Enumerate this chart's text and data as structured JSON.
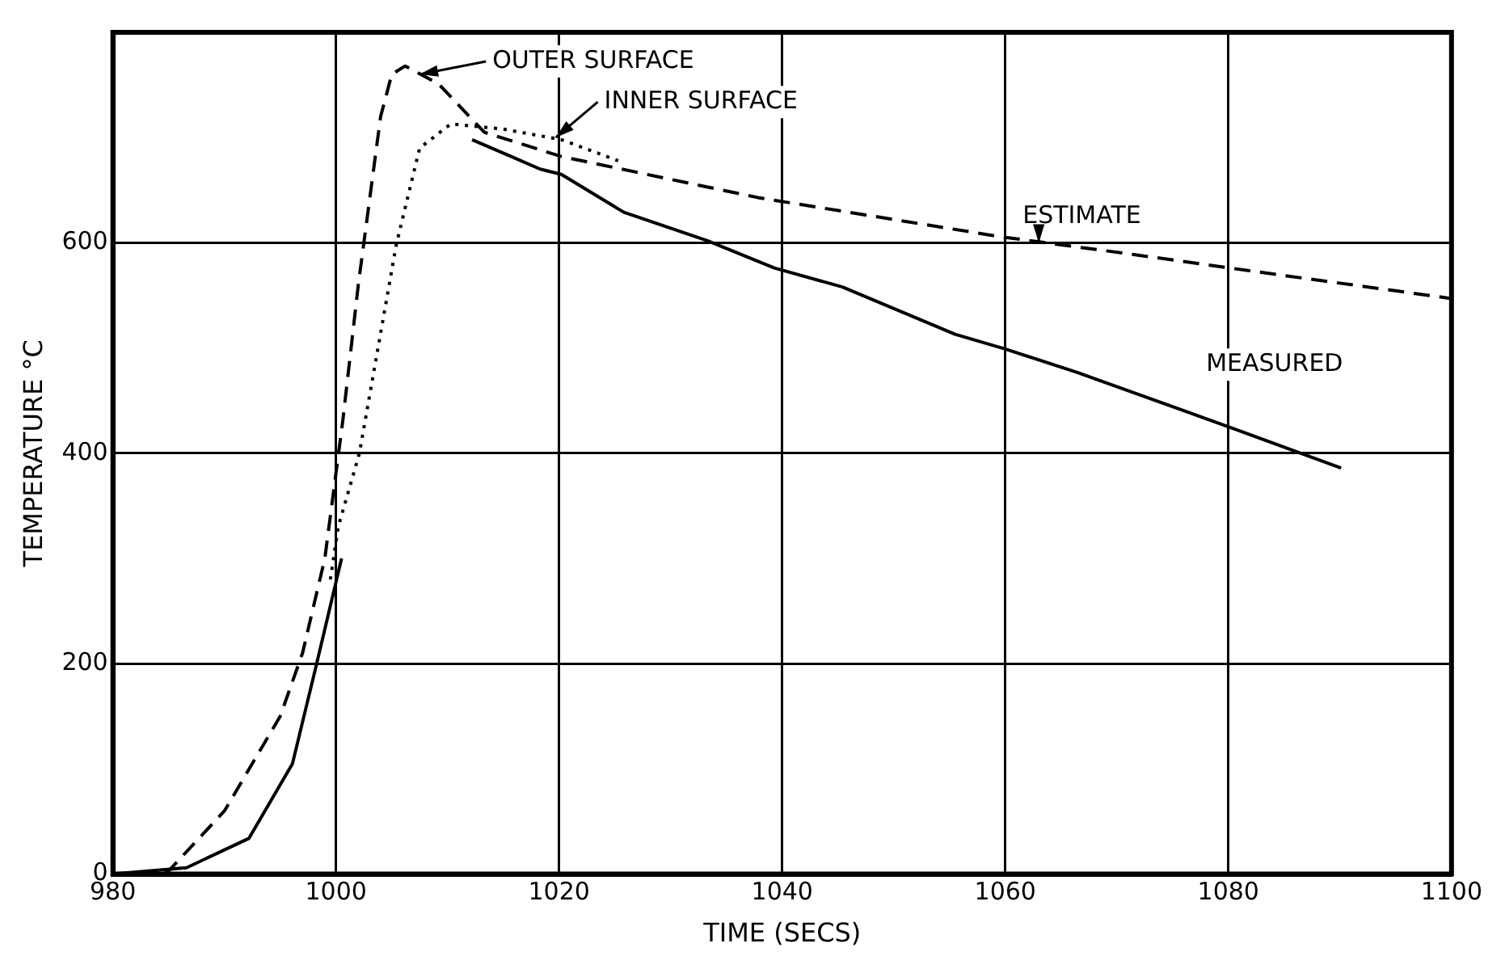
{
  "chart_data": {
    "type": "line",
    "xlabel": "TIME (SECS)",
    "ylabel": "TEMPERATURE °C",
    "xlim": [
      980,
      1100
    ],
    "xticks": [
      980,
      1000,
      1020,
      1040,
      1060,
      1080,
      1100
    ],
    "ylim": [
      0,
      800
    ],
    "yticks": [
      0,
      200,
      400,
      600
    ],
    "grid": true,
    "legend": false,
    "series": [
      {
        "color": "#000000",
        "line_style": "dashed",
        "x": [
          980,
          985,
          990,
          995,
          997,
          999,
          1000.6,
          1002,
          1003,
          1004,
          1005,
          1006.2,
          1009.2,
          1013.3,
          1020.2,
          1037.8,
          1059.4,
          1071.4,
          1081.5,
          1100
        ],
        "values": [
          0,
          3,
          60,
          150,
          210,
          300,
          430,
          560,
          640,
          720,
          760,
          768,
          751,
          705,
          682,
          643,
          606,
          589,
          574,
          547
        ]
      },
      {
        "color": "#000000",
        "line_style": "dotted",
        "x": [
          999.5,
          1000.2,
          1002.1,
          1005.4,
          1007.5,
          1010.3,
          1015,
          1020.2,
          1025.3
        ],
        "values": [
          280,
          330,
          400,
          598,
          690,
          713,
          708,
          698,
          678
        ]
      },
      {
        "color": "#000000",
        "line_style": "solid",
        "x": [
          980,
          986.6,
          992.2,
          996.1,
          998.2,
          999.9,
          1000.5,
          1006,
          1012.2,
          1015.7,
          1018.3,
          1020.2,
          1025.8,
          1033.3,
          1039.3,
          1045.4,
          1055.5,
          1060,
          1066.4,
          1079,
          1090.1
        ],
        "values": [
          0,
          6,
          34,
          105,
          197,
          273,
          300,
          null,
          698,
          682,
          670,
          665,
          629,
          602,
          576,
          558,
          513,
          499,
          477,
          429,
          386
        ]
      }
    ],
    "annotations": [
      {
        "text": "OUTER SURFACE",
        "x": 1007.5,
        "y": 760
      },
      {
        "text": "INNER SURFACE",
        "x": 1019.7,
        "y": 700
      },
      {
        "text": "ESTIMATE",
        "x": 1063,
        "y": 600
      },
      {
        "text": "MEASURED",
        "x": 1078,
        "y": 432
      }
    ]
  }
}
